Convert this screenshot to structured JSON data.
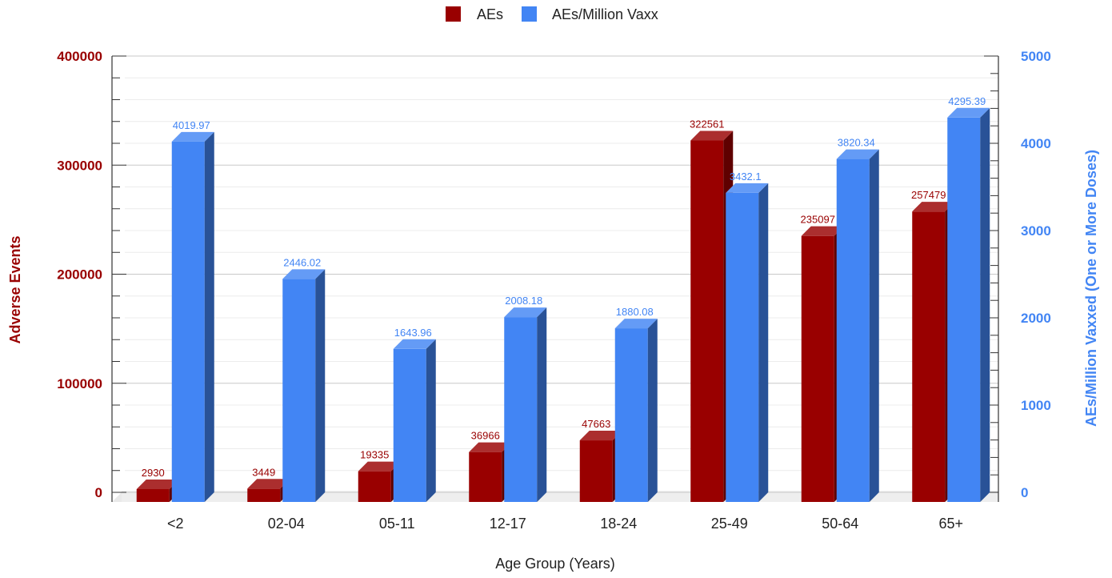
{
  "chart_data": {
    "type": "bar",
    "title": "",
    "categories": [
      "<2",
      "02-04",
      "05-11",
      "12-17",
      "18-24",
      "25-49",
      "50-64",
      "65+"
    ],
    "series": [
      {
        "name": "AEs",
        "axis": "left",
        "color": "#990000",
        "values": [
          2930,
          3449,
          19335,
          36966,
          47663,
          322561,
          235097,
          257479
        ],
        "labels": [
          "2930",
          "3449",
          "19335",
          "36966",
          "47663",
          "322561",
          "235097",
          "257479"
        ]
      },
      {
        "name": "AEs/Million Vaxx",
        "axis": "right",
        "color": "#4285f4",
        "values": [
          4019.97,
          2446.02,
          1643.96,
          2008.18,
          1880.08,
          3432.1,
          3820.34,
          4295.39
        ],
        "labels": [
          "4019.97",
          "2446.02",
          "1643.96",
          "2008.18",
          "1880.08",
          "3432.1",
          "3820.34",
          "4295.39"
        ]
      }
    ],
    "xlabel": "Age Group (Years)",
    "ylabel_left": "Adverse Events",
    "ylabel_right": "AEs/Million Vaxxed (One or More Doses)",
    "ylim_left": [
      0,
      400000
    ],
    "ylim_right": [
      0,
      5000
    ],
    "yticks_left": [
      "0",
      "100000",
      "200000",
      "300000",
      "400000"
    ],
    "yticks_right": [
      "0",
      "1000",
      "2000",
      "3000",
      "4000",
      "5000"
    ],
    "legend": {
      "position": "top",
      "items": [
        "AEs",
        "AEs/Million Vaxx"
      ]
    },
    "grid": true,
    "style": "3d"
  }
}
